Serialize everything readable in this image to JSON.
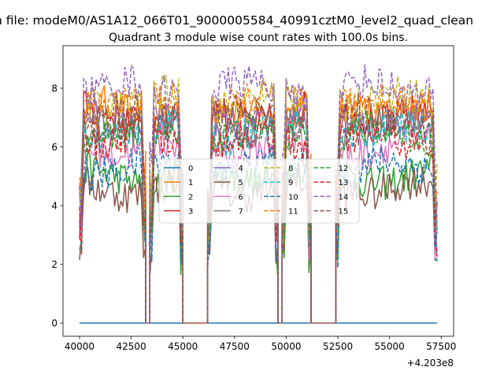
{
  "chart_data": {
    "type": "line",
    "suptitle": "n file: modeM0/AS1A12_066T01_9000005584_40991cztM0_level2_quad_clean",
    "title": "Quadrant 3 module wise count rates with 100.0s bins.",
    "xlabel": "",
    "ylabel": "",
    "offset_label": "+4.203e8",
    "xlim": [
      39200,
      58100
    ],
    "ylim": [
      -0.45,
      9.45
    ],
    "x_ticks": [
      40000,
      42500,
      45000,
      47500,
      50000,
      52500,
      55000,
      57500
    ],
    "y_ticks": [
      0,
      2,
      4,
      6,
      8
    ],
    "x_tick_labels": [
      "40000",
      "42500",
      "45000",
      "47500",
      "50000",
      "52500",
      "55000",
      "57500"
    ],
    "y_tick_labels": [
      "0",
      "2",
      "4",
      "6",
      "8"
    ],
    "grid": false,
    "legend_position": "center",
    "legend_columns": 4,
    "segments": [
      [
        40000,
        43200
      ],
      [
        43400,
        45000
      ],
      [
        46200,
        49600
      ],
      [
        49800,
        51200
      ],
      [
        52400,
        57300
      ]
    ],
    "gap_level": 0,
    "series": [
      {
        "name": "0",
        "color": "#1f77b4",
        "dash": "solid",
        "base": 5.2,
        "constant": 0
      },
      {
        "name": "1",
        "color": "#ff7f0e",
        "dash": "solid",
        "base": 7.3
      },
      {
        "name": "2",
        "color": "#2ca02c",
        "dash": "solid",
        "base": 5.0
      },
      {
        "name": "3",
        "color": "#d62728",
        "dash": "solid",
        "base": 7.1
      },
      {
        "name": "4",
        "color": "#9467bd",
        "dash": "solid",
        "base": 6.9
      },
      {
        "name": "5",
        "color": "#8c564b",
        "dash": "solid",
        "base": 4.6
      },
      {
        "name": "6",
        "color": "#e377c2",
        "dash": "solid",
        "base": 6.0
      },
      {
        "name": "7",
        "color": "#7f7f7f",
        "dash": "solid",
        "base": 6.7
      },
      {
        "name": "8",
        "color": "#bcbd22",
        "dash": "dashed",
        "base": 7.6
      },
      {
        "name": "9",
        "color": "#17becf",
        "dash": "dashed",
        "base": 6.5
      },
      {
        "name": "10",
        "color": "#1f77b4",
        "dash": "dashed",
        "base": 5.3
      },
      {
        "name": "11",
        "color": "#ff7f0e",
        "dash": "dashed",
        "base": 7.5
      },
      {
        "name": "12",
        "color": "#2ca02c",
        "dash": "dashed",
        "base": 6.4
      },
      {
        "name": "13",
        "color": "#d62728",
        "dash": "dashed",
        "base": 6.2
      },
      {
        "name": "14",
        "color": "#9467bd",
        "dash": "dashed",
        "base": 8.0
      },
      {
        "name": "15",
        "color": "#8c564b",
        "dash": "dashed",
        "base": 7.0
      }
    ]
  }
}
